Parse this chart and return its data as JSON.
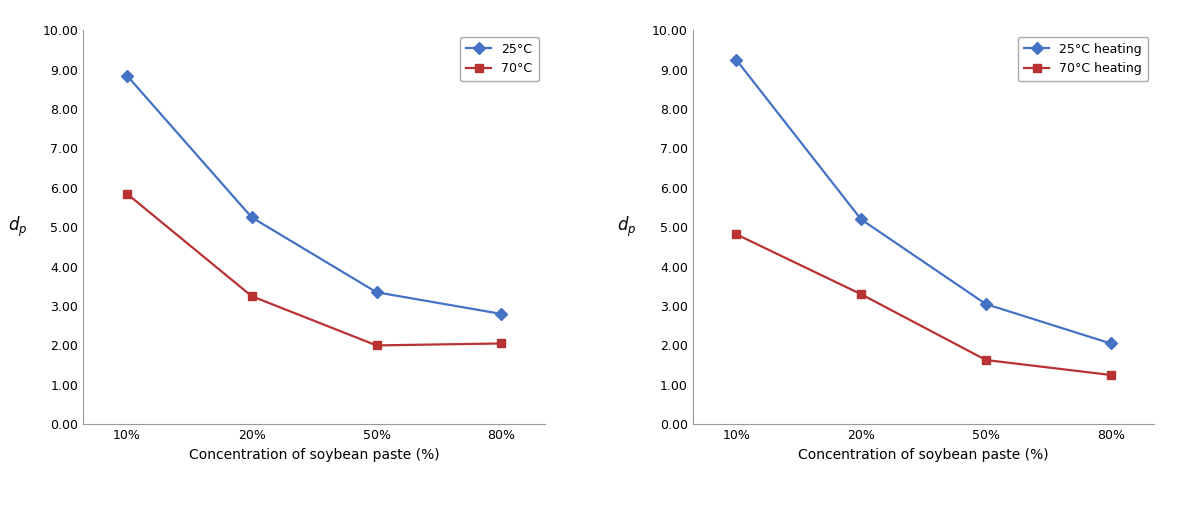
{
  "left_chart": {
    "xlabel": "Concentration of soybean paste (%)",
    "ylabel": "$d_p$",
    "x_labels": [
      "10%",
      "20%",
      "50%",
      "80%"
    ],
    "series": [
      {
        "label": "25°C",
        "color": "#4472C4",
        "marker": "D",
        "values": [
          8.85,
          5.25,
          3.35,
          2.8
        ]
      },
      {
        "label": "70°C",
        "color": "#B83232",
        "marker": "s",
        "values": [
          5.85,
          3.25,
          2.0,
          2.05
        ]
      }
    ],
    "ylim": [
      0.0,
      10.0
    ],
    "yticks": [
      0.0,
      1.0,
      2.0,
      3.0,
      4.0,
      5.0,
      6.0,
      7.0,
      8.0,
      9.0,
      10.0
    ]
  },
  "right_chart": {
    "xlabel": "Concentration of soybean paste (%)",
    "ylabel": "$d_p$",
    "x_labels": [
      "10%",
      "20%",
      "50%",
      "80%"
    ],
    "series": [
      {
        "label": "25°C heating",
        "color": "#4472C4",
        "marker": "D",
        "values": [
          9.25,
          5.2,
          3.05,
          2.05
        ]
      },
      {
        "label": "70°C heating",
        "color": "#B83232",
        "marker": "s",
        "values": [
          4.82,
          3.3,
          1.63,
          1.25
        ]
      }
    ],
    "ylim": [
      0.0,
      10.0
    ],
    "yticks": [
      0.0,
      1.0,
      2.0,
      3.0,
      4.0,
      5.0,
      6.0,
      7.0,
      8.0,
      9.0,
      10.0
    ]
  },
  "background_color": "#ffffff",
  "line_width": 1.6,
  "marker_size": 6,
  "font_size_label": 10,
  "font_size_tick": 9,
  "font_size_legend": 9
}
